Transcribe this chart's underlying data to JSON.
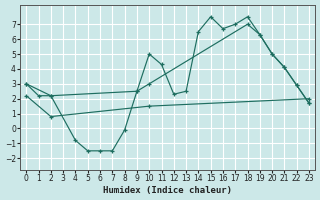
{
  "bg_color": "#cce8e8",
  "grid_color": "#b8d8d8",
  "line_color": "#1e6e60",
  "xlabel": "Humidex (Indice chaleur)",
  "xlim": [
    -0.5,
    23.5
  ],
  "ylim": [
    -2.8,
    8.3
  ],
  "xticks": [
    0,
    1,
    2,
    3,
    4,
    5,
    6,
    7,
    8,
    9,
    10,
    11,
    12,
    13,
    14,
    15,
    16,
    17,
    18,
    19,
    20,
    21,
    22,
    23
  ],
  "yticks": [
    -2,
    -1,
    0,
    1,
    2,
    3,
    4,
    5,
    6,
    7
  ],
  "curve1_x": [
    0,
    1,
    2,
    4,
    5,
    6,
    7,
    8,
    9,
    10,
    11,
    12,
    13,
    14,
    15,
    16,
    17,
    18,
    19,
    20,
    21,
    22,
    23
  ],
  "curve1_y": [
    3.0,
    2.2,
    2.2,
    -0.8,
    -1.5,
    -1.5,
    -1.5,
    -0.1,
    2.5,
    5.0,
    4.3,
    2.3,
    2.5,
    6.5,
    7.5,
    6.7,
    7.0,
    7.5,
    6.3,
    5.0,
    4.1,
    2.9,
    1.7
  ],
  "curve2_x": [
    0,
    2,
    9,
    10,
    18,
    19,
    20,
    21,
    22,
    23
  ],
  "curve2_y": [
    3.0,
    2.2,
    2.5,
    3.0,
    7.0,
    6.3,
    5.0,
    4.1,
    2.9,
    1.7
  ],
  "curve3_x": [
    0,
    2,
    10,
    23
  ],
  "curve3_y": [
    2.2,
    0.8,
    1.5,
    2.0
  ]
}
